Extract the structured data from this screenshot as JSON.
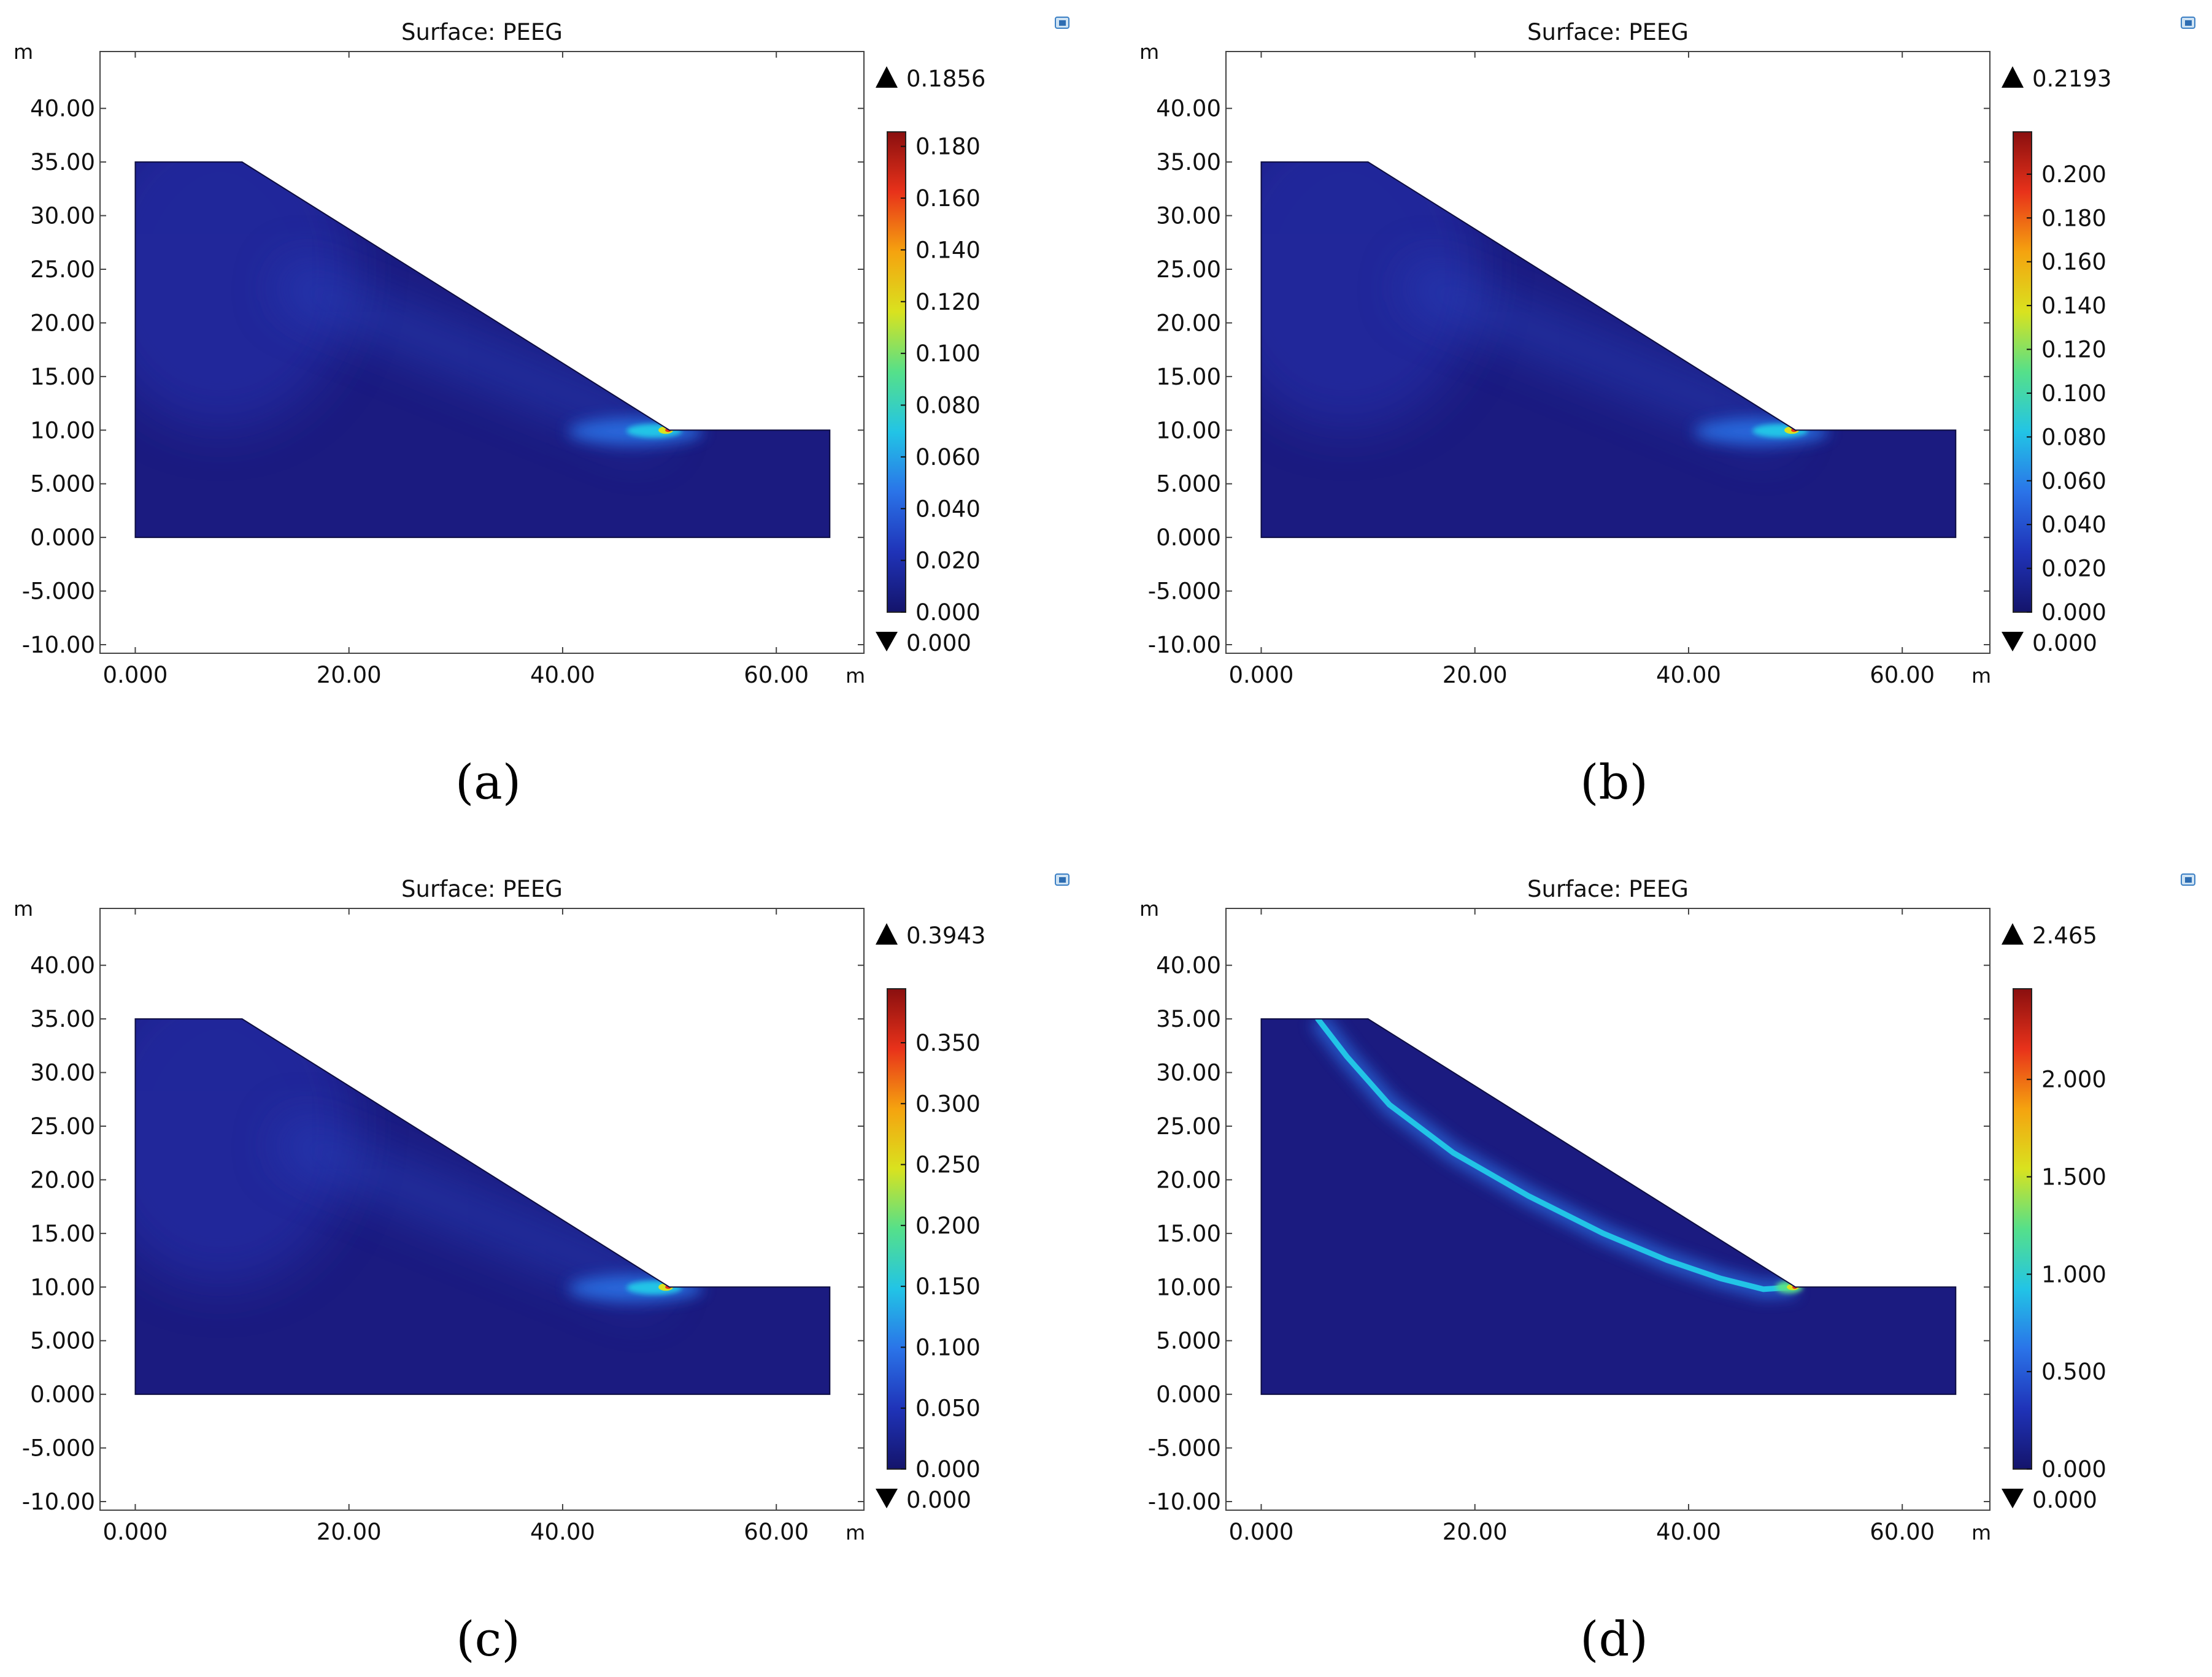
{
  "colors": {
    "background": "#ffffff",
    "axis": "#444444",
    "field_base": "#1b1b80",
    "colormap": [
      "#14146b",
      "#1f33b8",
      "#2a73e8",
      "#22c4e6",
      "#55e08a",
      "#d9e21f",
      "#f5a30f",
      "#e8321a",
      "#8a0f0f"
    ]
  },
  "chart_data": [
    {
      "type": "heatmap",
      "id": "a",
      "title": "Surface: PEEG",
      "caption": "(a)",
      "xlabel": "m",
      "ylabel": "m",
      "xlim": [
        -3.3,
        68.2
      ],
      "ylim": [
        -10.8,
        45.3
      ],
      "xticks": [
        0,
        20,
        40,
        60
      ],
      "xtick_labels": [
        "0.000",
        "20.00",
        "40.00",
        "60.00"
      ],
      "yticks": [
        40,
        35,
        30,
        25,
        20,
        15,
        10,
        5,
        0,
        -5,
        -10
      ],
      "ytick_labels": [
        "40.00",
        "35.00",
        "30.00",
        "25.00",
        "20.00",
        "15.00",
        "10.00",
        "5.000",
        "0.000",
        "-5.000",
        "-10.00"
      ],
      "domain": [
        [
          0,
          0
        ],
        [
          0,
          35
        ],
        [
          10,
          35
        ],
        [
          50,
          10
        ],
        [
          65,
          10
        ],
        [
          65,
          0
        ]
      ],
      "concentration": {
        "x": 50,
        "y": 10
      },
      "band": "toe",
      "colorbar": {
        "max_label": "0.1856",
        "min_label": "0.000",
        "range": [
          0,
          0.1856
        ],
        "ticks": [
          0,
          0.02,
          0.04,
          0.06,
          0.08,
          0.1,
          0.12,
          0.14,
          0.16,
          0.18
        ],
        "tick_labels": [
          "0.000",
          "0.020",
          "0.040",
          "0.060",
          "0.080",
          "0.100",
          "0.120",
          "0.140",
          "0.160",
          "0.180"
        ]
      }
    },
    {
      "type": "heatmap",
      "id": "b",
      "title": "Surface: PEEG",
      "caption": "(b)",
      "xlabel": "m",
      "ylabel": "m",
      "xlim": [
        -3.3,
        68.2
      ],
      "ylim": [
        -10.8,
        45.3
      ],
      "xticks": [
        0,
        20,
        40,
        60
      ],
      "xtick_labels": [
        "0.000",
        "20.00",
        "40.00",
        "60.00"
      ],
      "yticks": [
        40,
        35,
        30,
        25,
        20,
        15,
        10,
        5,
        0,
        -5,
        -10
      ],
      "ytick_labels": [
        "40.00",
        "35.00",
        "30.00",
        "25.00",
        "20.00",
        "15.00",
        "10.00",
        "5.000",
        "0.000",
        "-5.000",
        "-10.00"
      ],
      "domain": [
        [
          0,
          0
        ],
        [
          0,
          35
        ],
        [
          10,
          35
        ],
        [
          50,
          10
        ],
        [
          65,
          10
        ],
        [
          65,
          0
        ]
      ],
      "concentration": {
        "x": 50,
        "y": 10
      },
      "band": "toe",
      "colorbar": {
        "max_label": "0.2193",
        "min_label": "0.000",
        "range": [
          0,
          0.2193
        ],
        "ticks": [
          0,
          0.02,
          0.04,
          0.06,
          0.08,
          0.1,
          0.12,
          0.14,
          0.16,
          0.18,
          0.2
        ],
        "tick_labels": [
          "0.000",
          "0.020",
          "0.040",
          "0.060",
          "0.080",
          "0.100",
          "0.120",
          "0.140",
          "0.160",
          "0.180",
          "0.200"
        ]
      }
    },
    {
      "type": "heatmap",
      "id": "c",
      "title": "Surface: PEEG",
      "caption": "(c)",
      "xlabel": "m",
      "ylabel": "m",
      "xlim": [
        -3.3,
        68.2
      ],
      "ylim": [
        -10.8,
        45.3
      ],
      "xticks": [
        0,
        20,
        40,
        60
      ],
      "xtick_labels": [
        "0.000",
        "20.00",
        "40.00",
        "60.00"
      ],
      "yticks": [
        40,
        35,
        30,
        25,
        20,
        15,
        10,
        5,
        0,
        -5,
        -10
      ],
      "ytick_labels": [
        "40.00",
        "35.00",
        "30.00",
        "25.00",
        "20.00",
        "15.00",
        "10.00",
        "5.000",
        "0.000",
        "-5.000",
        "-10.00"
      ],
      "domain": [
        [
          0,
          0
        ],
        [
          0,
          35
        ],
        [
          10,
          35
        ],
        [
          50,
          10
        ],
        [
          65,
          10
        ],
        [
          65,
          0
        ]
      ],
      "concentration": {
        "x": 50,
        "y": 10
      },
      "band": "toe",
      "colorbar": {
        "max_label": "0.3943",
        "min_label": "0.000",
        "range": [
          0,
          0.3943
        ],
        "ticks": [
          0,
          0.05,
          0.1,
          0.15,
          0.2,
          0.25,
          0.3,
          0.35
        ],
        "tick_labels": [
          "0.000",
          "0.050",
          "0.100",
          "0.150",
          "0.200",
          "0.250",
          "0.300",
          "0.350"
        ]
      }
    },
    {
      "type": "heatmap",
      "id": "d",
      "title": "Surface: PEEG",
      "caption": "(d)",
      "xlabel": "m",
      "ylabel": "m",
      "xlim": [
        -3.3,
        68.2
      ],
      "ylim": [
        -10.8,
        45.3
      ],
      "xticks": [
        0,
        20,
        40,
        60
      ],
      "xtick_labels": [
        "0.000",
        "20.00",
        "40.00",
        "60.00"
      ],
      "yticks": [
        40,
        35,
        30,
        25,
        20,
        15,
        10,
        5,
        0,
        -5,
        -10
      ],
      "ytick_labels": [
        "40.00",
        "35.00",
        "30.00",
        "25.00",
        "20.00",
        "15.00",
        "10.00",
        "5.000",
        "0.000",
        "-5.000",
        "-10.00"
      ],
      "domain": [
        [
          0,
          0
        ],
        [
          0,
          35
        ],
        [
          10,
          35
        ],
        [
          50,
          10
        ],
        [
          65,
          10
        ],
        [
          65,
          0
        ]
      ],
      "concentration": {
        "x": 50,
        "y": 10
      },
      "band": "slip-surface",
      "slip_surface": [
        [
          5.3,
          35
        ],
        [
          8,
          31.5
        ],
        [
          12,
          27
        ],
        [
          18,
          22.5
        ],
        [
          25,
          18.5
        ],
        [
          32,
          15
        ],
        [
          38,
          12.5
        ],
        [
          43,
          10.8
        ],
        [
          47,
          9.8
        ],
        [
          50,
          10
        ]
      ],
      "colorbar": {
        "max_label": "2.465",
        "min_label": "0.000",
        "range": [
          0,
          2.465
        ],
        "ticks": [
          0,
          0.5,
          1.0,
          1.5,
          2.0
        ],
        "tick_labels": [
          "0.000",
          "0.500",
          "1.000",
          "1.500",
          "2.000"
        ]
      }
    }
  ]
}
